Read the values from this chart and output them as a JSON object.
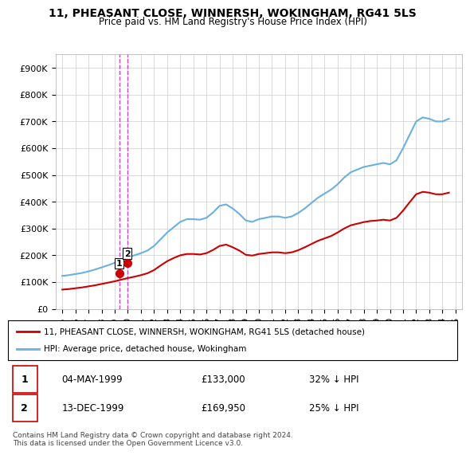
{
  "title": "11, PHEASANT CLOSE, WINNERSH, WOKINGHAM, RG41 5LS",
  "subtitle": "Price paid vs. HM Land Registry's House Price Index (HPI)",
  "legend_line1": "11, PHEASANT CLOSE, WINNERSH, WOKINGHAM, RG41 5LS (detached house)",
  "legend_line2": "HPI: Average price, detached house, Wokingham",
  "footer": "Contains HM Land Registry data © Crown copyright and database right 2024.\nThis data is licensed under the Open Government Licence v3.0.",
  "sale1_label": "1",
  "sale1_date": "04-MAY-1999",
  "sale1_price": "£133,000",
  "sale1_hpi": "32% ↓ HPI",
  "sale1_x": 1999.35,
  "sale1_y": 133000,
  "sale2_label": "2",
  "sale2_date": "13-DEC-1999",
  "sale2_price": "£169,950",
  "sale2_hpi": "25% ↓ HPI",
  "sale2_x": 1999.95,
  "sale2_y": 169950,
  "hpi_color": "#6ab0e0",
  "price_color": "#cc0000",
  "vline_color": "#cc44cc",
  "xlim": [
    1994.5,
    2025.5
  ],
  "ylim": [
    0,
    950000
  ],
  "yticks": [
    0,
    100000,
    200000,
    300000,
    400000,
    500000,
    600000,
    700000,
    800000,
    900000
  ],
  "ytick_labels": [
    "£0",
    "£100K",
    "£200K",
    "£300K",
    "£400K",
    "£500K",
    "£600K",
    "£700K",
    "£800K",
    "£900K"
  ],
  "xticks": [
    1995,
    1996,
    1997,
    1998,
    1999,
    2000,
    2001,
    2002,
    2003,
    2004,
    2005,
    2006,
    2007,
    2008,
    2009,
    2010,
    2011,
    2012,
    2013,
    2014,
    2015,
    2016,
    2017,
    2018,
    2019,
    2020,
    2021,
    2022,
    2023,
    2024,
    2025
  ],
  "hpi_years": [
    1995.0,
    1995.5,
    1996.0,
    1996.5,
    1997.0,
    1997.5,
    1998.0,
    1998.5,
    1999.0,
    1999.5,
    2000.0,
    2000.5,
    2001.0,
    2001.5,
    2002.0,
    2002.5,
    2003.0,
    2003.5,
    2004.0,
    2004.5,
    2005.0,
    2005.5,
    2006.0,
    2006.5,
    2007.0,
    2007.5,
    2008.0,
    2008.5,
    2009.0,
    2009.5,
    2010.0,
    2010.5,
    2011.0,
    2011.5,
    2012.0,
    2012.5,
    2013.0,
    2013.5,
    2014.0,
    2014.5,
    2015.0,
    2015.5,
    2016.0,
    2016.5,
    2017.0,
    2017.5,
    2018.0,
    2018.5,
    2019.0,
    2019.5,
    2020.0,
    2020.5,
    2021.0,
    2021.5,
    2022.0,
    2022.5,
    2023.0,
    2023.5,
    2024.0,
    2024.5
  ],
  "hpi_values": [
    123000,
    126000,
    130000,
    134000,
    140000,
    147000,
    155000,
    163000,
    172000,
    182000,
    193000,
    200000,
    208000,
    218000,
    235000,
    260000,
    285000,
    305000,
    325000,
    335000,
    335000,
    333000,
    340000,
    360000,
    385000,
    390000,
    375000,
    355000,
    330000,
    325000,
    335000,
    340000,
    345000,
    345000,
    340000,
    345000,
    358000,
    375000,
    395000,
    415000,
    430000,
    445000,
    465000,
    490000,
    510000,
    520000,
    530000,
    535000,
    540000,
    545000,
    540000,
    555000,
    600000,
    650000,
    700000,
    715000,
    710000,
    700000,
    700000,
    710000
  ],
  "price_years": [
    1995.0,
    1995.5,
    1996.0,
    1996.5,
    1997.0,
    1997.5,
    1998.0,
    1998.5,
    1999.0,
    1999.5,
    2000.0,
    2000.5,
    2001.0,
    2001.5,
    2002.0,
    2002.5,
    2003.0,
    2003.5,
    2004.0,
    2004.5,
    2005.0,
    2005.5,
    2006.0,
    2006.5,
    2007.0,
    2007.5,
    2008.0,
    2008.5,
    2009.0,
    2009.5,
    2010.0,
    2010.5,
    2011.0,
    2011.5,
    2012.0,
    2012.5,
    2013.0,
    2013.5,
    2014.0,
    2014.5,
    2015.0,
    2015.5,
    2016.0,
    2016.5,
    2017.0,
    2017.5,
    2018.0,
    2018.5,
    2019.0,
    2019.5,
    2020.0,
    2020.5,
    2021.0,
    2021.5,
    2022.0,
    2022.5,
    2023.0,
    2023.5,
    2024.0,
    2024.5
  ],
  "price_values": [
    72000,
    74000,
    77000,
    80000,
    84000,
    88000,
    93000,
    98000,
    103000,
    109000,
    115000,
    120000,
    126000,
    133000,
    145000,
    162000,
    178000,
    190000,
    200000,
    205000,
    205000,
    203000,
    208000,
    220000,
    235000,
    240000,
    230000,
    218000,
    202000,
    199000,
    205000,
    208000,
    211000,
    211000,
    208000,
    211000,
    219000,
    230000,
    242000,
    254000,
    263000,
    272000,
    285000,
    300000,
    312000,
    318000,
    324000,
    328000,
    330000,
    333000,
    330000,
    340000,
    367000,
    398000,
    428000,
    437000,
    434000,
    428000,
    428000,
    434000
  ]
}
